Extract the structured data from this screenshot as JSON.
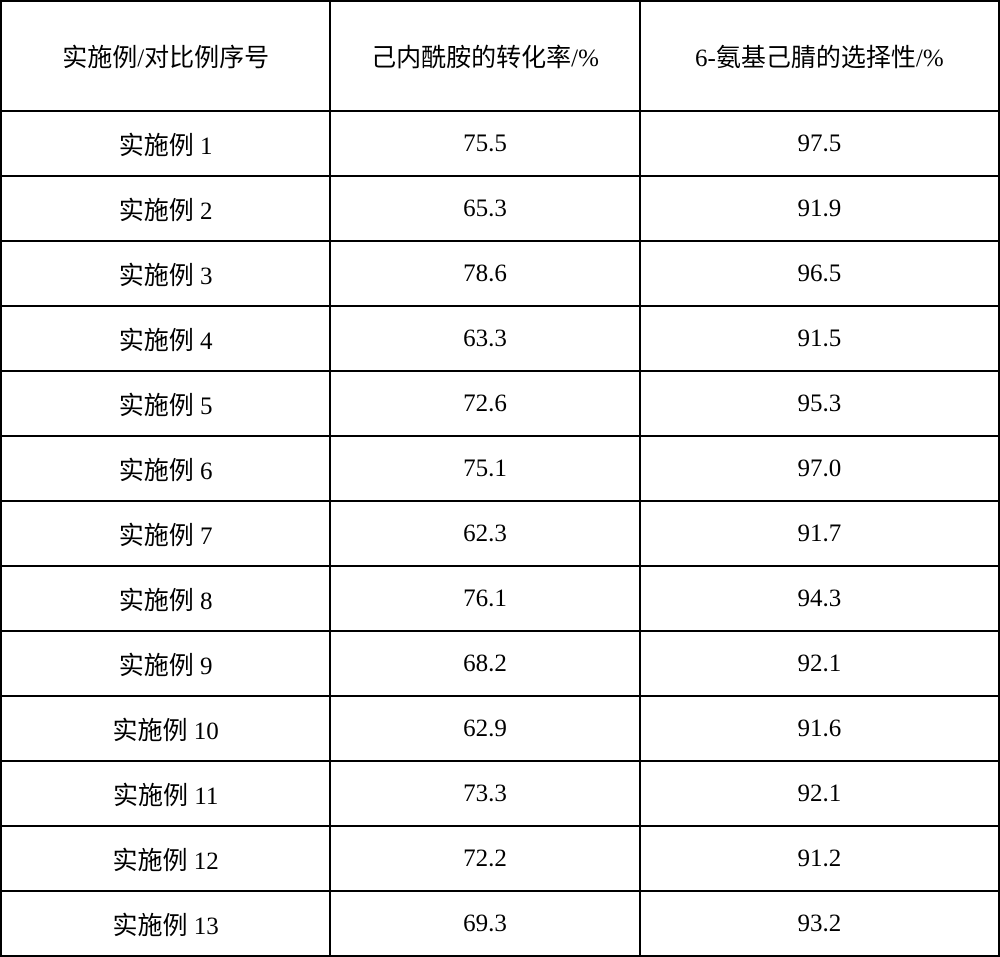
{
  "table": {
    "type": "table",
    "background_color": "#ffffff",
    "border_color": "#000000",
    "border_width": 2,
    "font_family": "SimSun",
    "font_size": 25,
    "text_color": "#000000",
    "header_row_height": 110,
    "body_row_height": 65,
    "column_widths_percent": [
      33,
      31,
      36
    ],
    "columns": [
      "实施例/对比例序号",
      "己内酰胺的转化率/%",
      "6-氨基己腈的选择性/%"
    ],
    "rows": [
      [
        "实施例 1",
        "75.5",
        "97.5"
      ],
      [
        "实施例 2",
        "65.3",
        "91.9"
      ],
      [
        "实施例 3",
        "78.6",
        "96.5"
      ],
      [
        "实施例 4",
        "63.3",
        "91.5"
      ],
      [
        "实施例 5",
        "72.6",
        "95.3"
      ],
      [
        "实施例 6",
        "75.1",
        "97.0"
      ],
      [
        "实施例 7",
        "62.3",
        "91.7"
      ],
      [
        "实施例 8",
        "76.1",
        "94.3"
      ],
      [
        "实施例 9",
        "68.2",
        "92.1"
      ],
      [
        "实施例 10",
        "62.9",
        "91.6"
      ],
      [
        "实施例 11",
        "73.3",
        "92.1"
      ],
      [
        "实施例 12",
        "72.2",
        "91.2"
      ],
      [
        "实施例 13",
        "69.3",
        "93.2"
      ]
    ]
  }
}
